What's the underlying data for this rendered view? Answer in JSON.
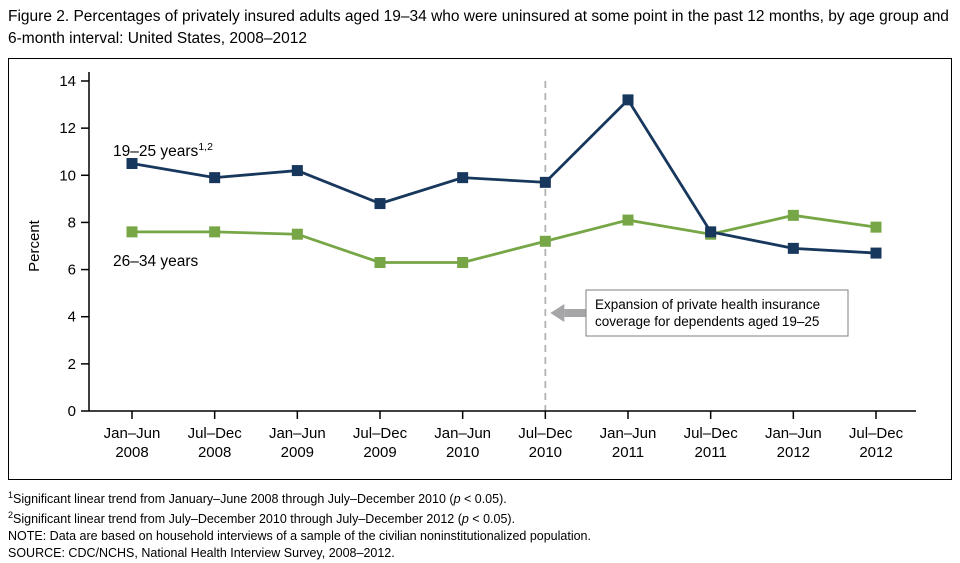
{
  "title": "Figure 2. Percentages of privately insured adults aged 19–34 who were uninsured at some point in the past 12 months, by age group and 6-month interval: United States, 2008–2012",
  "chart_data": {
    "type": "line",
    "categories": [
      "Jan–Jun 2008",
      "Jul–Dec 2008",
      "Jan–Jun 2009",
      "Jul–Dec 2009",
      "Jan–Jun 2010",
      "Jul–Dec 2010",
      "Jan–Jun 2011",
      "Jul–Dec 2011",
      "Jan–Jun 2012",
      "Jul–Dec 2012"
    ],
    "series": [
      {
        "name": "19–25 years",
        "label_sup": "1,2",
        "color": "#17375d",
        "values": [
          10.5,
          9.9,
          10.2,
          8.8,
          9.9,
          9.7,
          13.2,
          7.6,
          6.9,
          6.7
        ]
      },
      {
        "name": "26–34 years",
        "label_sup": "",
        "color": "#77a646",
        "values": [
          7.6,
          7.6,
          7.5,
          6.3,
          6.3,
          7.2,
          8.1,
          7.5,
          8.3,
          7.8
        ]
      }
    ],
    "xlabel": "",
    "ylabel": "Percent",
    "ylim": [
      0,
      14
    ],
    "ytick_step": 2,
    "grid": false,
    "legend_position": "inline-labels",
    "annotation": {
      "x_index": 5,
      "lines": [
        "Expansion of private health insurance",
        "coverage for dependents aged 19–25"
      ]
    },
    "reference_line_color": "#b2b2b2",
    "arrow_color": "#a6a6a8"
  },
  "footnotes": [
    {
      "sup": "1",
      "pre": "Significant linear trend from January–June 2008 through July–December 2010 (",
      "italic": "p",
      "post": " < 0.05)."
    },
    {
      "sup": "2",
      "pre": "Significant linear trend from July–December 2010 through July–December 2012 (",
      "italic": "p",
      "post": " < 0.05)."
    }
  ],
  "note": "NOTE: Data are based on household interviews of a sample of the civilian noninstitutionalized population.",
  "source": "SOURCE: CDC/NCHS, National Health Interview Survey, 2008–2012."
}
